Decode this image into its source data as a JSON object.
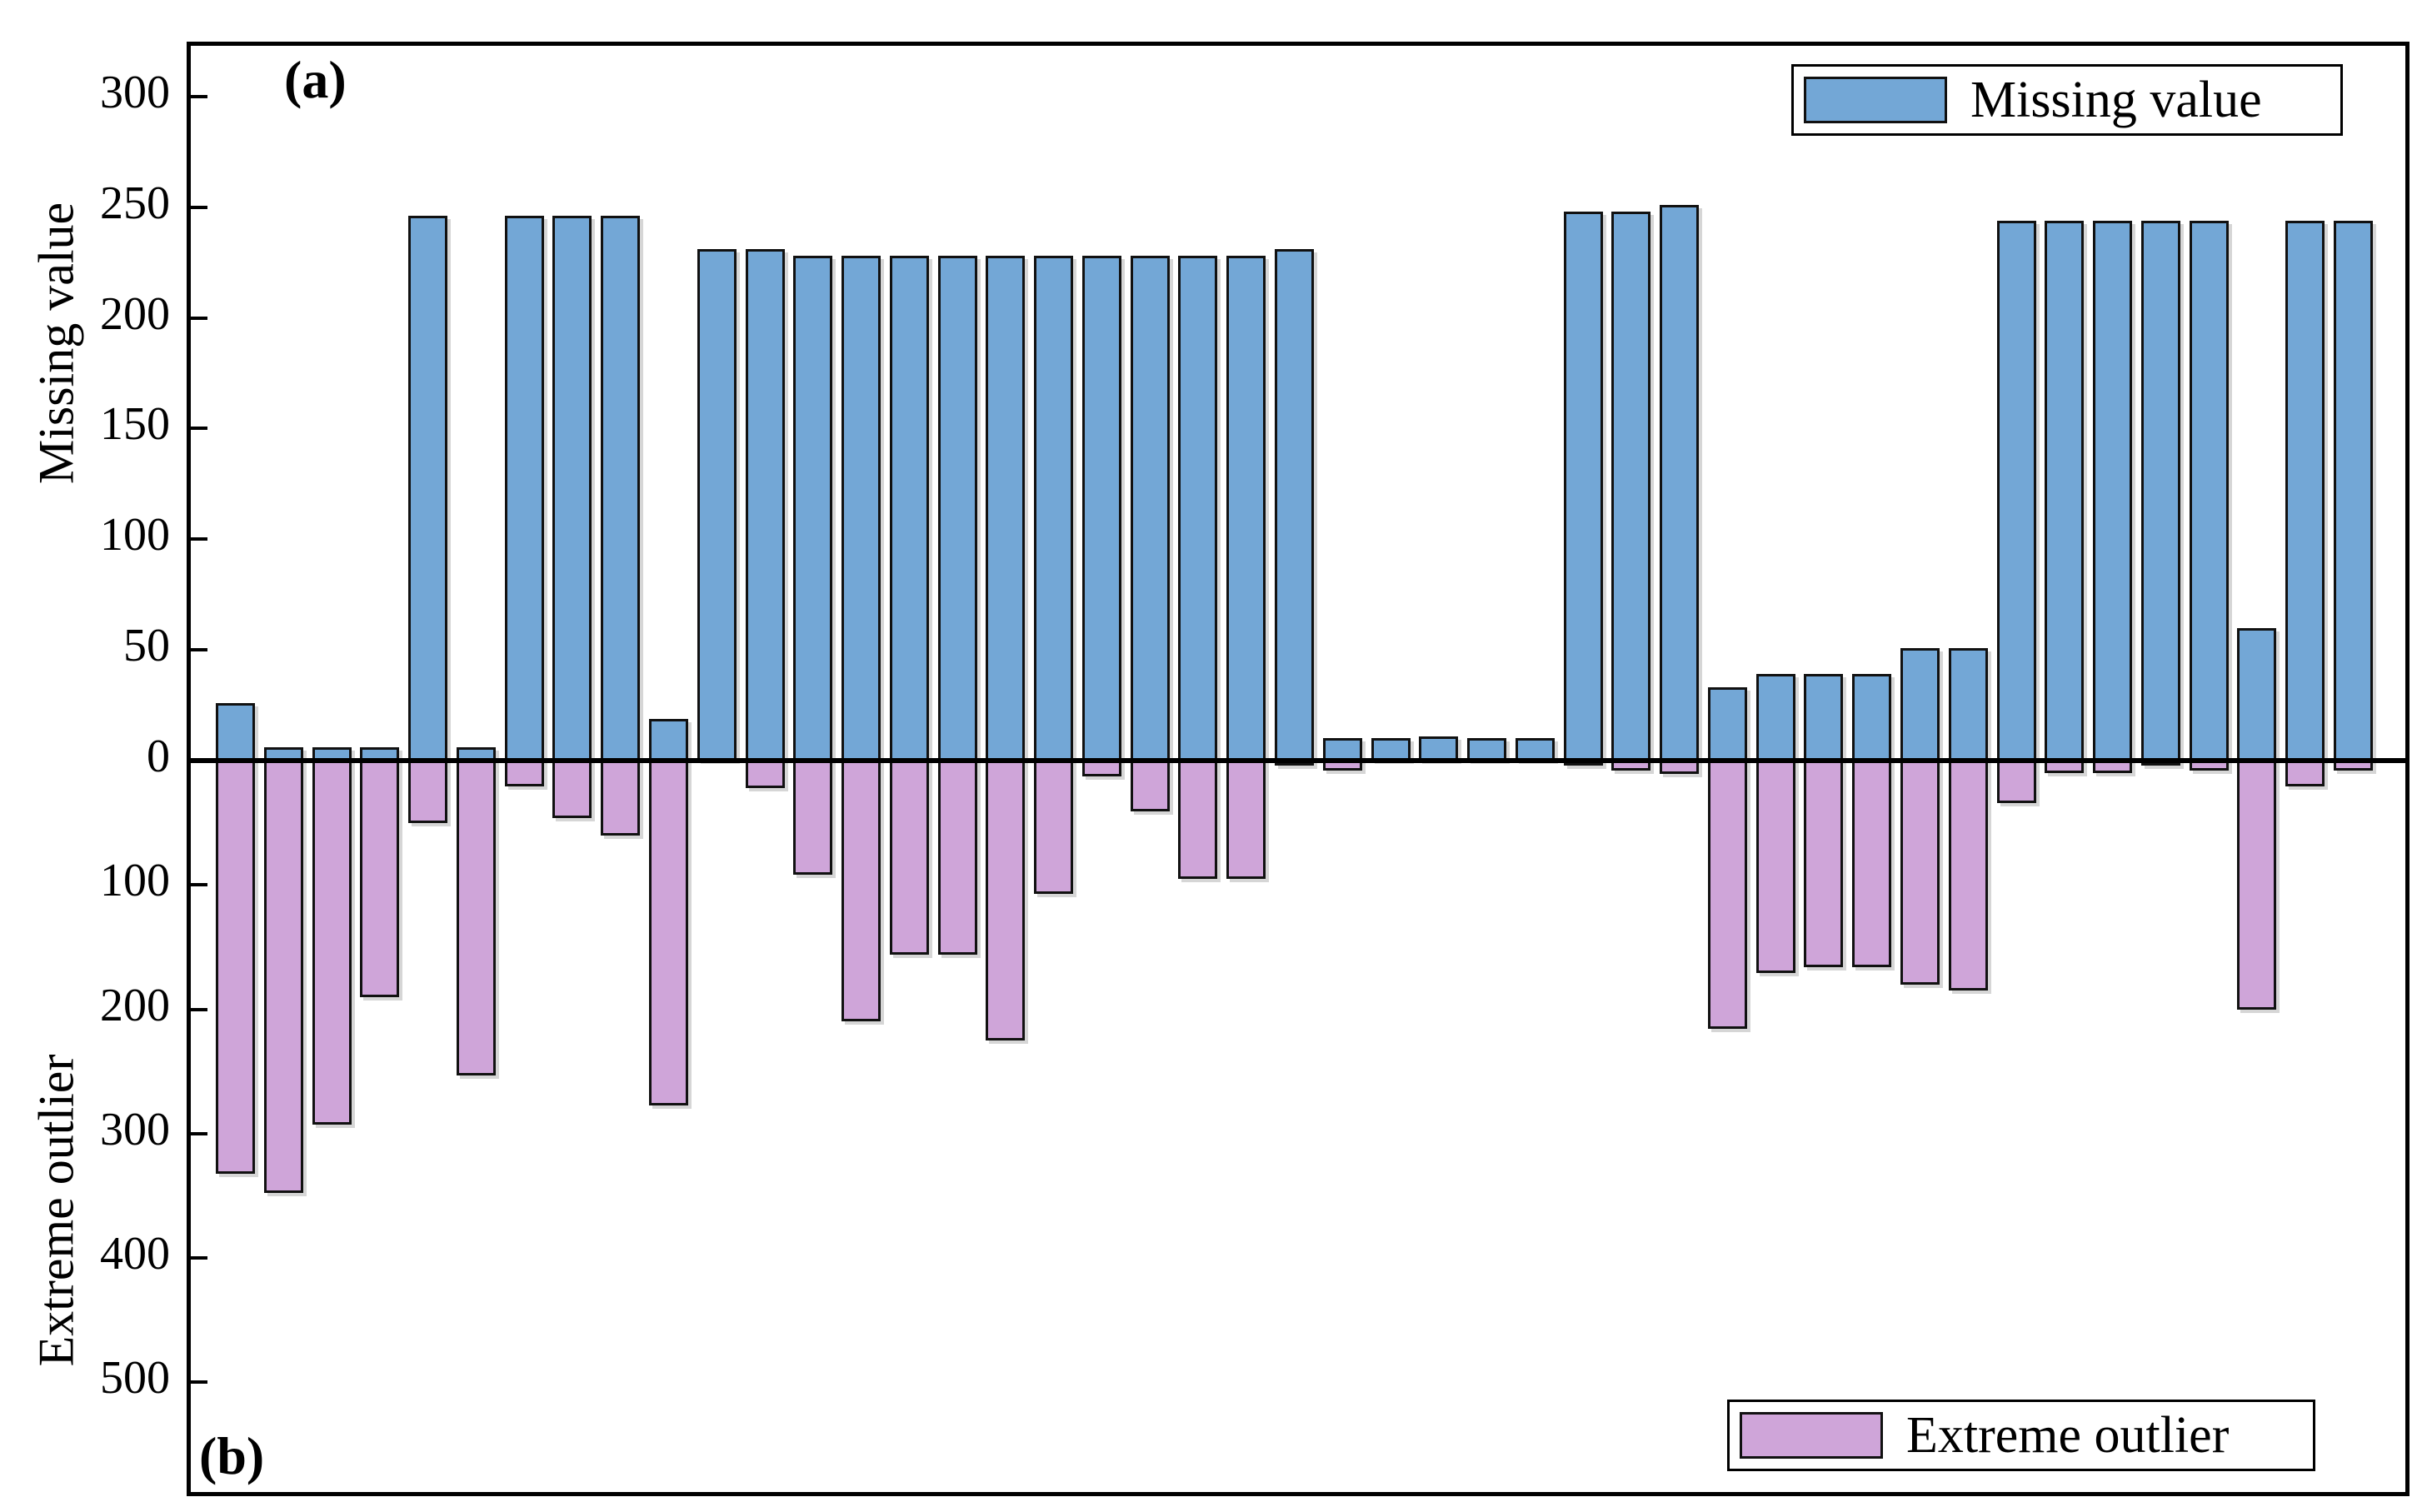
{
  "panel": {
    "a": "(a)",
    "b": "(b)"
  },
  "axes": {
    "top": {
      "label": "Missing value",
      "ticks": [
        0,
        50,
        100,
        150,
        200,
        250,
        300
      ]
    },
    "bottom": {
      "label": "Extreme outlier",
      "ticks": [
        100,
        200,
        300,
        400,
        500
      ]
    }
  },
  "legends": {
    "missing": {
      "label": "Missing value"
    },
    "outlier": {
      "label": "Extreme outlier"
    }
  },
  "colors": {
    "missing_bar": "#73A7D6",
    "outlier_bar": "#CFA5D9",
    "bar_edge": "#111111",
    "axis": "#000000"
  },
  "chart_data": {
    "type": "bar",
    "title": "",
    "xlabel": "",
    "ylabel_top": "Missing value",
    "ylabel_bottom": "Extreme outlier",
    "x_count": 45,
    "ylim_top": [
      0,
      328
    ],
    "ylim_bottom": [
      0,
      -590
    ],
    "grid": false,
    "legend_positions": [
      "top-right",
      "bottom-right"
    ],
    "series": [
      {
        "name": "Missing value",
        "color": "#73A7D6",
        "values": [
          26,
          6,
          6,
          6,
          246,
          6,
          246,
          246,
          246,
          19,
          231,
          231,
          228,
          228,
          228,
          228,
          228,
          228,
          228,
          228,
          228,
          228,
          231,
          10,
          10,
          11,
          10,
          10,
          248,
          248,
          251,
          33,
          39,
          39,
          39,
          51,
          51,
          244,
          244,
          244,
          244,
          244,
          60,
          244,
          244
        ]
      },
      {
        "name": "Extreme outlier",
        "color": "#CFA5D9",
        "values": [
          -332,
          -348,
          -293,
          -190,
          -50,
          -253,
          -21,
          -46,
          -60,
          -277,
          0,
          -22,
          -92,
          -210,
          -156,
          -156,
          -225,
          -107,
          -13,
          -41,
          -95,
          -95,
          -4,
          -8,
          0,
          0,
          0,
          0,
          -2,
          -8,
          -11,
          -216,
          -171,
          -166,
          -166,
          -180,
          -185,
          -34,
          -10,
          -10,
          -4,
          -8,
          -200,
          -21,
          -8
        ]
      }
    ]
  }
}
